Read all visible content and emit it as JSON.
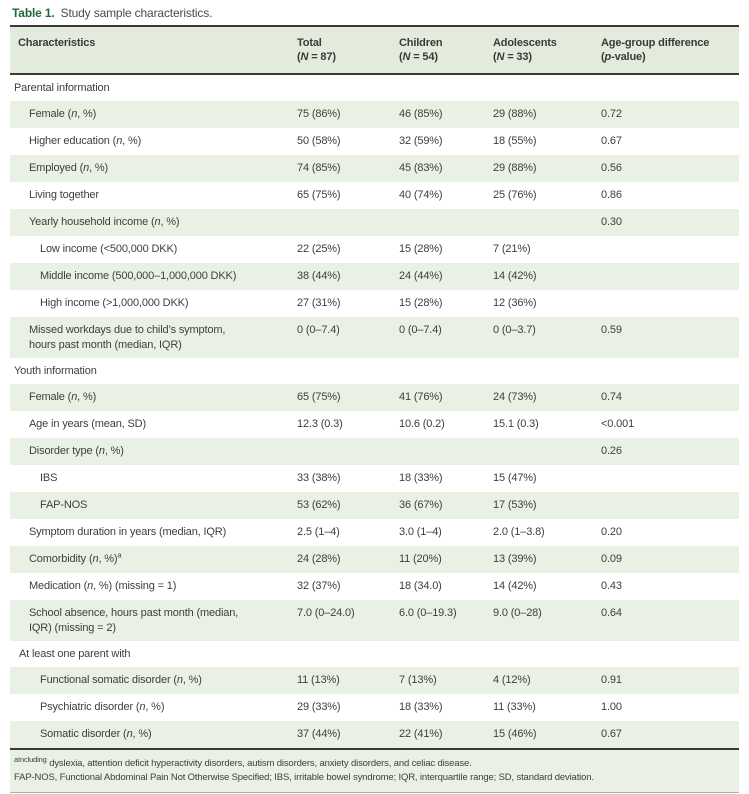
{
  "title": {
    "label": "Table 1.",
    "text": "Study sample characteristics."
  },
  "colors": {
    "title_green": "#1c6a3b",
    "header_band": "#e3ecdc",
    "row_shade": "#e9f1e4",
    "rule_dark": "#3a3a39",
    "text": "#3e3e3d"
  },
  "columns": [
    {
      "id": "characteristics",
      "line1": "Characteristics",
      "line2": ""
    },
    {
      "id": "total",
      "line1": "Total",
      "line2": "(*N* = 87)"
    },
    {
      "id": "children",
      "line1": "Children",
      "line2": "(*N* = 54)"
    },
    {
      "id": "adolescents",
      "line1": "Adolescents",
      "line2": "(*N* = 33)"
    },
    {
      "id": "p-value",
      "line1": "Age-group difference",
      "line2": "(*p*-value)"
    }
  ],
  "rows": [
    {
      "type": "section",
      "level": 0,
      "shaded": false,
      "label": "Parental information"
    },
    {
      "type": "data",
      "level": 2,
      "shaded": true,
      "label": "Female (*n*, %)",
      "cells": [
        "75 (86%)",
        "46 (85%)",
        "29 (88%)",
        "0.72"
      ]
    },
    {
      "type": "data",
      "level": 2,
      "shaded": false,
      "label": "Higher education (*n*, %)",
      "cells": [
        "50 (58%)",
        "32 (59%)",
        "18 (55%)",
        "0.67"
      ]
    },
    {
      "type": "data",
      "level": 2,
      "shaded": true,
      "label": "Employed (*n*, %)",
      "cells": [
        "74 (85%)",
        "45 (83%)",
        "29 (88%)",
        "0.56"
      ]
    },
    {
      "type": "data",
      "level": 2,
      "shaded": false,
      "label": "Living together",
      "cells": [
        "65 (75%)",
        "40 (74%)",
        "25 (76%)",
        "0.86"
      ]
    },
    {
      "type": "data",
      "level": 2,
      "shaded": true,
      "label": "Yearly household income (*n*, %)",
      "cells": [
        "",
        "",
        "",
        "0.30"
      ]
    },
    {
      "type": "data",
      "level": 3,
      "shaded": false,
      "label": "Low income (<500,000 DKK)",
      "cells": [
        "22 (25%)",
        "15 (28%)",
        "7 (21%)",
        ""
      ]
    },
    {
      "type": "data",
      "level": 3,
      "shaded": true,
      "label": "Middle income (500,000–1,000,000 DKK)",
      "cells": [
        "38 (44%)",
        "24 (44%)",
        "14 (42%)",
        ""
      ]
    },
    {
      "type": "data",
      "level": 3,
      "shaded": false,
      "label": "High income (>1,000,000 DKK)",
      "cells": [
        "27 (31%)",
        "15 (28%)",
        "12 (36%)",
        ""
      ]
    },
    {
      "type": "data",
      "level": 2,
      "shaded": true,
      "label": "Missed workdays due to child’s symptom,\nhours past month (median, IQR)",
      "cells": [
        "0 (0–7.4)",
        "0 (0–7.4)",
        "0 (0–3.7)",
        "0.59"
      ]
    },
    {
      "type": "section",
      "level": 0,
      "shaded": false,
      "label": "Youth information"
    },
    {
      "type": "data",
      "level": 2,
      "shaded": true,
      "label": "Female (*n*, %)",
      "cells": [
        "65 (75%)",
        "41 (76%)",
        "24 (73%)",
        "0.74"
      ]
    },
    {
      "type": "data",
      "level": 2,
      "shaded": false,
      "label": "Age in years (mean, SD)",
      "cells": [
        "12.3 (0.3)",
        "10.6 (0.2)",
        "15.1 (0.3)",
        "<0.001"
      ]
    },
    {
      "type": "data",
      "level": 2,
      "shaded": true,
      "label": "Disorder type (*n*, %)",
      "cells": [
        "",
        "",
        "",
        "0.26"
      ]
    },
    {
      "type": "data",
      "level": 3,
      "shaded": false,
      "label": "IBS",
      "cells": [
        "33 (38%)",
        "18 (33%)",
        "15 (47%)",
        ""
      ]
    },
    {
      "type": "data",
      "level": 3,
      "shaded": true,
      "label": "FAP-NOS",
      "cells": [
        "53 (62%)",
        "36 (67%)",
        "17 (53%)",
        ""
      ]
    },
    {
      "type": "data",
      "level": 2,
      "shaded": false,
      "label": "Symptom duration in years (median, IQR)",
      "cells": [
        "2.5 (1–4)",
        "3.0 (1–4)",
        "2.0 (1–3.8)",
        "0.20"
      ]
    },
    {
      "type": "data",
      "level": 2,
      "shaded": true,
      "label": "Comorbidity (*n*, %)^a",
      "cells": [
        "24 (28%)",
        "11 (20%)",
        "13 (39%)",
        "0.09"
      ]
    },
    {
      "type": "data",
      "level": 2,
      "shaded": false,
      "label": "Medication (*n*, %) (missing = 1)",
      "cells": [
        "32 (37%)",
        "18 (34.0)",
        "14 (42%)",
        "0.43"
      ]
    },
    {
      "type": "data",
      "level": 2,
      "shaded": true,
      "label": "School absence, hours past month (median,\nIQR) (missing = 2)",
      "cells": [
        "7.0 (0–24.0)",
        "6.0 (0–19.3)",
        "9.0 (0–28)",
        "0.64"
      ]
    },
    {
      "type": "section",
      "level": 1,
      "shaded": false,
      "label": "At least one parent with"
    },
    {
      "type": "data",
      "level": 3,
      "shaded": true,
      "label": "Functional somatic disorder (*n*, %)",
      "cells": [
        "11 (13%)",
        "7 (13%)",
        "4 (12%)",
        "0.91"
      ]
    },
    {
      "type": "data",
      "level": 3,
      "shaded": false,
      "label": "Psychiatric disorder (*n*, %)",
      "cells": [
        "29 (33%)",
        "18 (33%)",
        "11 (33%)",
        "1.00"
      ]
    },
    {
      "type": "data",
      "level": 3,
      "shaded": true,
      "label": "Somatic disorder (*n*, %)",
      "cells": [
        "37 (44%)",
        "22 (41%)",
        "15 (46%)",
        "0.67"
      ]
    }
  ],
  "footnotes": [
    "^aIncluding dyslexia, attention deficit hyperactivity disorders, autism disorders, anxiety disorders, and celiac disease.",
    "FAP-NOS, Functional Abdominal Pain Not Otherwise Specified; IBS, irritable bowel syndrome; IQR, interquartile range; SD, standard deviation."
  ]
}
